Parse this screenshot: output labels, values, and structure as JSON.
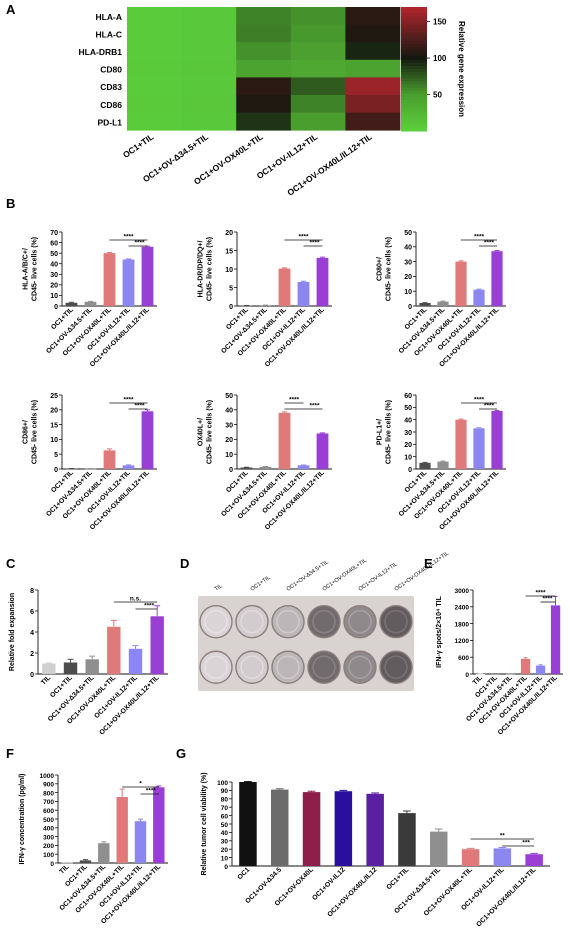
{
  "panels": {
    "A": "A",
    "B": "B",
    "C": "C",
    "D": "D",
    "E": "E",
    "F": "F",
    "G": "G"
  },
  "colors": {
    "dark": "#4d4d4d",
    "gray": "#8f8f8f",
    "red": "#e07a7a",
    "blue": "#8b86f0",
    "purple": "#9a3fd6",
    "black": "#111111",
    "maroon": "#8e1f4a",
    "navy": "#2a0f9e",
    "violet": "#5b1fa2",
    "charcoal": "#3a3a3a",
    "mid": "#6b6b6b"
  },
  "chart_data": [
    {
      "id": "A",
      "type": "heatmap",
      "rows": [
        "HLA-A",
        "HLA-C",
        "HLA-DRB1",
        "CD80",
        "CD83",
        "CD86",
        "PD-L1"
      ],
      "columns": [
        "OC1+TIL",
        "OC1+OV-Δ34.5+TIL",
        "OC1+OV-OX40L+TIL",
        "OC1+OV-IL12+TIL",
        "OC1+OV-OX40L/IL12+TIL"
      ],
      "values": [
        [
          5,
          8,
          60,
          55,
          110
        ],
        [
          5,
          8,
          62,
          52,
          105
        ],
        [
          5,
          8,
          55,
          48,
          95
        ],
        [
          6,
          9,
          45,
          40,
          45
        ],
        [
          5,
          8,
          110,
          75,
          160
        ],
        [
          6,
          9,
          105,
          60,
          145
        ],
        [
          5,
          8,
          90,
          50,
          120
        ]
      ],
      "colorbar": {
        "label": "Relative gene expression",
        "ticks": [
          50,
          100,
          150
        ],
        "range": [
          0,
          170
        ]
      }
    },
    {
      "id": "B1",
      "type": "bar",
      "ylabel": "HLA-A/B/C+/ CD45- live cells (%)",
      "categories": [
        "OC1+TIL",
        "OC1+OV-Δ34.5+TIL",
        "OC1+OV-OX40L+TIL",
        "OC1+OV-IL12+TIL",
        "OC1+OV-OX40L/IL12+TIL"
      ],
      "values": [
        3,
        4,
        50,
        44,
        56
      ],
      "errors": [
        0.5,
        0.4,
        0.6,
        0.5,
        0.6
      ],
      "ylim": [
        0,
        70
      ],
      "yticks": [
        0,
        10,
        20,
        30,
        40,
        50,
        60,
        70
      ],
      "sig": [
        {
          "from": 2,
          "to": 4,
          "label": "****"
        },
        {
          "from": 3,
          "to": 4,
          "label": "****"
        }
      ]
    },
    {
      "id": "B2",
      "type": "bar",
      "ylabel": "HLA-DR/DP/DQ+/ CD45- live cells (%)",
      "categories": [
        "OC1+TIL",
        "OC1+OV-Δ34.5+TIL",
        "OC1+OV-OX40L+TIL",
        "OC1+OV-IL12+TIL",
        "OC1+OV-OX40L/IL12+TIL"
      ],
      "values": [
        0.1,
        0.2,
        10.1,
        6.5,
        13
      ],
      "errors": [
        0.05,
        0.05,
        0.2,
        0.2,
        0.2
      ],
      "ylim": [
        0,
        20
      ],
      "yticks": [
        0,
        5,
        10,
        15,
        20
      ],
      "sig": [
        {
          "from": 2,
          "to": 4,
          "label": "****"
        },
        {
          "from": 3,
          "to": 4,
          "label": "****"
        }
      ]
    },
    {
      "id": "B3",
      "type": "bar",
      "ylabel": "CD80+/ CD45- live cells (%)",
      "categories": [
        "OC1+TIL",
        "OC1+OV-Δ34.5+TIL",
        "OC1+OV-OX40L+TIL",
        "OC1+OV-IL12+TIL",
        "OC1+OV-OX40L/IL12+TIL"
      ],
      "values": [
        2,
        3,
        30,
        11,
        37
      ],
      "errors": [
        0.3,
        0.3,
        0.5,
        0.4,
        0.5
      ],
      "ylim": [
        0,
        50
      ],
      "yticks": [
        0,
        10,
        20,
        30,
        40,
        50
      ],
      "sig": [
        {
          "from": 2,
          "to": 4,
          "label": "****"
        },
        {
          "from": 3,
          "to": 4,
          "label": "****"
        }
      ]
    },
    {
      "id": "B4",
      "type": "bar",
      "ylabel": "CD86+/ CD45- live cells (%)",
      "categories": [
        "OC1+TIL",
        "OC1+OV-Δ34.5+TIL",
        "OC1+OV-OX40L+TIL",
        "OC1+OV-IL12+TIL",
        "OC1+OV-OX40L/IL12+TIL"
      ],
      "values": [
        0.1,
        0.1,
        6.3,
        1.2,
        19.5
      ],
      "errors": [
        0.05,
        0.05,
        0.5,
        0.2,
        0.5
      ],
      "ylim": [
        0,
        25
      ],
      "yticks": [
        0,
        5,
        10,
        15,
        20,
        25
      ],
      "sig": [
        {
          "from": 2,
          "to": 4,
          "label": "****"
        },
        {
          "from": 3,
          "to": 4,
          "label": "****"
        }
      ]
    },
    {
      "id": "B5",
      "type": "bar",
      "ylabel": "OX40L+/ CD45- live cells (%)",
      "categories": [
        "OC1+TIL",
        "OC1+OV-Δ34.5+TIL",
        "OC1+OV-OX40L+TIL",
        "OC1+OV-IL12+TIL",
        "OC1+OV-OX40L/IL12+TIL"
      ],
      "values": [
        1,
        1.5,
        38,
        2.5,
        24
      ],
      "errors": [
        0.2,
        0.2,
        0.6,
        0.2,
        0.4
      ],
      "ylim": [
        0,
        50
      ],
      "yticks": [
        0,
        10,
        20,
        30,
        40,
        50
      ],
      "sig": [
        {
          "from": 2,
          "to": 3,
          "label": "****"
        },
        {
          "from": 2,
          "to": 4,
          "label": "****"
        }
      ]
    },
    {
      "id": "B6",
      "type": "bar",
      "ylabel": "PD-L1+/ CD45- live cells (%)",
      "categories": [
        "OC1+TIL",
        "OC1+OV-Δ34.5+TIL",
        "OC1+OV-OX40L+TIL",
        "OC1+OV-IL12+TIL",
        "OC1+OV-OX40L/IL12+TIL"
      ],
      "values": [
        5,
        6,
        40,
        33,
        47
      ],
      "errors": [
        0.4,
        0.4,
        0.5,
        0.5,
        0.5
      ],
      "ylim": [
        0,
        60
      ],
      "yticks": [
        0,
        10,
        20,
        30,
        40,
        50,
        60
      ],
      "sig": [
        {
          "from": 2,
          "to": 4,
          "label": "****"
        },
        {
          "from": 3,
          "to": 4,
          "label": "****"
        }
      ]
    },
    {
      "id": "C",
      "type": "bar",
      "ylabel": "Relative fold expansion",
      "categories": [
        "TIL",
        "OC1+TIL",
        "OC1+OV-Δ34.5+TIL",
        "OC1+OV-OX40L+TIL",
        "OC1+OV-IL12+TIL",
        "OC1+OV-OX40L/IL12+TIL"
      ],
      "values": [
        1,
        1.1,
        1.4,
        4.5,
        2.4,
        5.5
      ],
      "errors": [
        0.05,
        0.3,
        0.3,
        0.6,
        0.3,
        1.0
      ],
      "ylim": [
        0,
        8
      ],
      "yticks": [
        0,
        2,
        4,
        6,
        8
      ],
      "sig": [
        {
          "from": 3,
          "to": 5,
          "label": "n.s."
        },
        {
          "from": 4,
          "to": 5,
          "label": "****"
        }
      ]
    },
    {
      "id": "E",
      "type": "bar",
      "ylabel": "IFN-γ spots/2×10⁴ TIL",
      "categories": [
        "TIL",
        "OC1+TIL",
        "OC1+OV-Δ34.5+TIL",
        "OC1+OV-OX40L+TIL",
        "OC1+OV-IL12+TIL",
        "OC1+OV-OX40L/IL12+TIL"
      ],
      "values": [
        5,
        5,
        8,
        540,
        300,
        2450
      ],
      "errors": [
        1,
        1,
        2,
        40,
        30,
        320
      ],
      "ylim": [
        0,
        3000
      ],
      "yticks": [
        0,
        600,
        1200,
        1800,
        2400,
        3000
      ],
      "sig": [
        {
          "from": 3,
          "to": 5,
          "label": "****"
        },
        {
          "from": 4,
          "to": 5,
          "label": "****"
        }
      ]
    },
    {
      "id": "F",
      "type": "bar",
      "ylabel": "IFN-γ concentration (pg/ml)",
      "categories": [
        "TIL",
        "OC1+TIL",
        "OC1+OV-Δ34.5+TIL",
        "OC1+OV-OX40L+TIL",
        "OC1+OV-IL12+TIL",
        "OC1+OV-OX40L/IL12+TIL"
      ],
      "values": [
        5,
        30,
        225,
        750,
        475,
        860
      ],
      "errors": [
        2,
        8,
        15,
        90,
        25,
        15
      ],
      "ylim": [
        0,
        1000
      ],
      "yticks": [
        0,
        100,
        200,
        300,
        400,
        500,
        600,
        700,
        800,
        900,
        1000
      ],
      "sig": [
        {
          "from": 3,
          "to": 5,
          "label": "*"
        },
        {
          "from": 4,
          "to": 5,
          "label": "****"
        }
      ]
    },
    {
      "id": "G",
      "type": "bar",
      "ylabel": "Relative tumor cell viability (%)",
      "categories": [
        "OC1",
        "OC1+OV-Δ34.5",
        "OC1+OV-OX40L",
        "OC1+OV-IL12",
        "OC1+OV-OX40L/IL12",
        "OC1+TIL",
        "OC1+OV-Δ34.5+TIL",
        "OC1+OV-OX40L+TIL",
        "OC1+OV-IL12+TIL",
        "OC1+OV-OX40L/IL12+TIL"
      ],
      "values": [
        100,
        91,
        88,
        89,
        86,
        63,
        41,
        20,
        21,
        14
      ],
      "errors": [
        0.5,
        1,
        1,
        1,
        1,
        2.5,
        3,
        1,
        1,
        1
      ],
      "ylim": [
        0,
        100
      ],
      "yticks": [
        0,
        10,
        20,
        30,
        40,
        50,
        60,
        70,
        80,
        90,
        100
      ],
      "sig": [
        {
          "from": 7,
          "to": 9,
          "label": "**"
        },
        {
          "from": 8,
          "to": 9,
          "label": "***"
        }
      ]
    }
  ],
  "plate": {
    "columns": [
      "TIL",
      "OC1+TIL",
      "OC1+OV-Δ34.5+TIL",
      "OC1+OV-OX40L+TIL",
      "OC1+OV-IL12+TIL",
      "OC1+OV-OX40L/IL12+TIL"
    ],
    "density": [
      0.05,
      0.1,
      0.25,
      0.75,
      0.55,
      0.85
    ]
  }
}
